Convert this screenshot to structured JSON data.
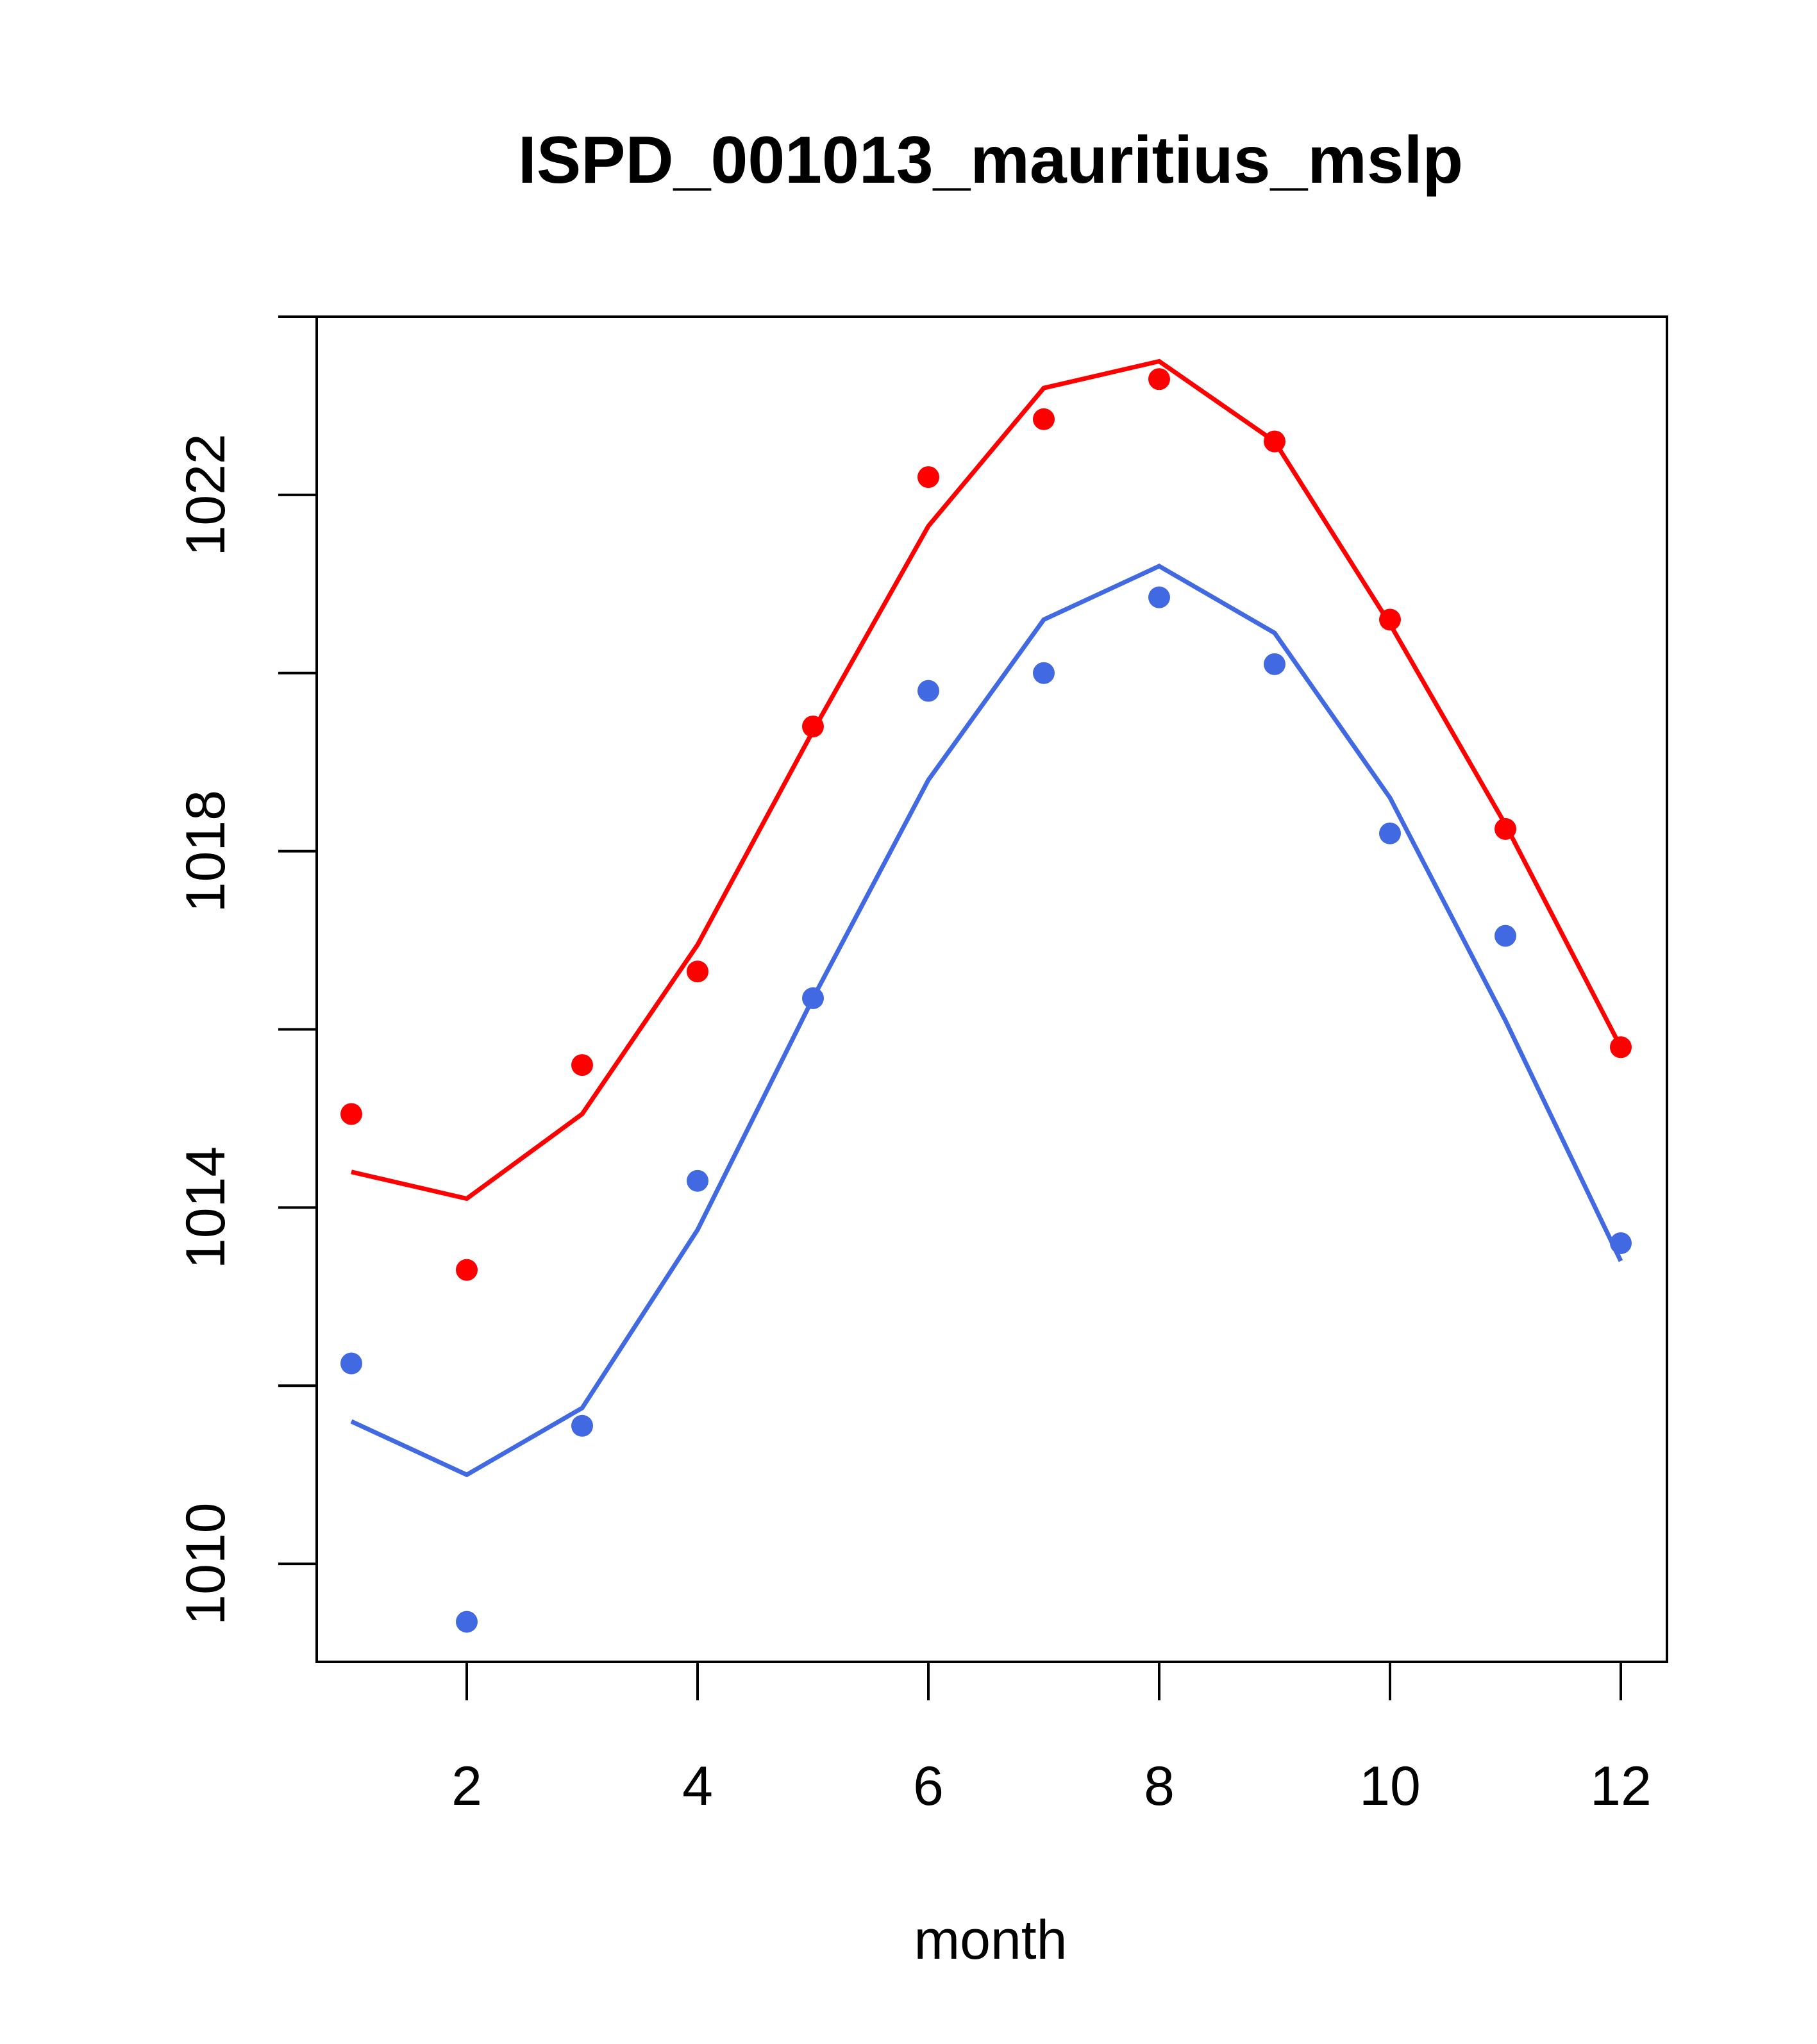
{
  "chart_data": {
    "type": "line",
    "title": "ISPD_001013_mauritius_mslp",
    "xlabel": "month",
    "ylabel": "",
    "xlim": [
      0.7,
      12.4
    ],
    "ylim": [
      1008.9,
      1024.0
    ],
    "x_ticks": [
      2,
      4,
      6,
      8,
      10,
      12
    ],
    "y_ticks": [
      1010,
      1012,
      1014,
      1016,
      1018,
      1020,
      1022,
      1024
    ],
    "y_tick_labels": [
      1010,
      1014,
      1018,
      1022
    ],
    "grid": false,
    "legend": "none",
    "x": [
      1,
      2,
      3,
      4,
      5,
      6,
      7,
      8,
      9,
      10,
      11,
      12
    ],
    "series": [
      {
        "color": "#ff0000",
        "line": [
          1014.4,
          1014.1,
          1015.05,
          1016.95,
          1019.35,
          1021.65,
          1023.2,
          1023.5,
          1022.6,
          1020.55,
          1018.3,
          1015.8
        ],
        "points": [
          1015.05,
          1013.3,
          1015.6,
          1016.65,
          1019.4,
          1022.2,
          1022.85,
          1023.3,
          1022.6,
          1020.6,
          1018.25,
          1015.8
        ]
      },
      {
        "color": "#4169e1",
        "line": [
          1011.6,
          1011.0,
          1011.75,
          1013.75,
          1016.35,
          1018.8,
          1020.6,
          1021.2,
          1020.45,
          1018.6,
          1016.1,
          1013.4
        ],
        "points": [
          1012.25,
          1009.35,
          1011.55,
          1014.3,
          1016.35,
          1019.8,
          1020.0,
          1020.85,
          1020.1,
          1018.2,
          1017.05,
          1013.6
        ]
      }
    ]
  }
}
